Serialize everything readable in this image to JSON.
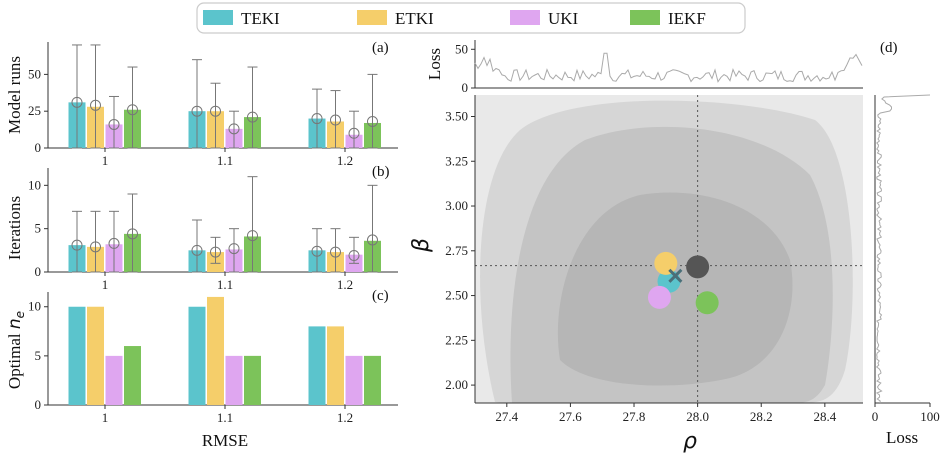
{
  "legend": [
    {
      "name": "TEKI",
      "color": "#5bc4cc"
    },
    {
      "name": "ETKI",
      "color": "#f5ce6a"
    },
    {
      "name": "UKI",
      "color": "#dfa6f0"
    },
    {
      "name": "IEKF",
      "color": "#7cc35a"
    }
  ],
  "chart_data": [
    {
      "type": "bar",
      "panel": "(a)",
      "ylabel": "Model runs",
      "xlabel": "",
      "categories": [
        "1",
        "1.1",
        "1.2"
      ],
      "ylim": [
        0,
        72
      ],
      "yticks": [
        0,
        25,
        50
      ],
      "series": [
        {
          "name": "TEKI",
          "values": [
            31,
            25,
            20
          ],
          "mean": [
            31,
            25,
            20
          ],
          "err_low": [
            0,
            0,
            0
          ],
          "err_high": [
            70,
            60,
            40
          ]
        },
        {
          "name": "ETKI",
          "values": [
            28,
            25,
            18
          ],
          "mean": [
            29,
            25,
            19
          ],
          "err_low": [
            0,
            0,
            0
          ],
          "err_high": [
            70,
            44,
            39
          ]
        },
        {
          "name": "UKI",
          "values": [
            16,
            13,
            9
          ],
          "mean": [
            16,
            13,
            10
          ],
          "err_low": [
            0,
            0,
            0
          ],
          "err_high": [
            35,
            25,
            25
          ]
        },
        {
          "name": "IEKF",
          "values": [
            26,
            21,
            17
          ],
          "mean": [
            26,
            21,
            18
          ],
          "err_low": [
            0,
            0,
            0
          ],
          "err_high": [
            55,
            55,
            50
          ]
        }
      ]
    },
    {
      "type": "bar",
      "panel": "(b)",
      "ylabel": "Iterations",
      "xlabel": "",
      "categories": [
        "1",
        "1.1",
        "1.2"
      ],
      "ylim": [
        0,
        12
      ],
      "yticks": [
        0,
        5,
        10
      ],
      "series": [
        {
          "name": "TEKI",
          "values": [
            3.1,
            2.5,
            2.5
          ],
          "mean": [
            3.1,
            2.5,
            2.4
          ],
          "err_low": [
            0,
            0,
            0
          ],
          "err_high": [
            7,
            6,
            5
          ]
        },
        {
          "name": "ETKI",
          "values": [
            2.9,
            2.3,
            2.3
          ],
          "mean": [
            2.9,
            2.3,
            2.3
          ],
          "err_low": [
            0,
            1,
            0
          ],
          "err_high": [
            7,
            4,
            5
          ]
        },
        {
          "name": "UKI",
          "values": [
            3.2,
            2.6,
            2.0
          ],
          "mean": [
            3.3,
            2.7,
            1.9
          ],
          "err_low": [
            0,
            0,
            1
          ],
          "err_high": [
            7,
            5,
            4
          ]
        },
        {
          "name": "IEKF",
          "values": [
            4.4,
            4.1,
            3.6
          ],
          "mean": [
            4.4,
            4.2,
            3.7
          ],
          "err_low": [
            0,
            0,
            0
          ],
          "err_high": [
            9,
            11,
            10
          ]
        }
      ]
    },
    {
      "type": "bar",
      "panel": "(c)",
      "ylabel": "Optimal n_e",
      "xlabel": "RMSE",
      "categories": [
        "1",
        "1.1",
        "1.2"
      ],
      "ylim": [
        0,
        11.5
      ],
      "yticks": [
        0,
        5,
        10
      ],
      "series": [
        {
          "name": "TEKI",
          "values": [
            10,
            10,
            8
          ]
        },
        {
          "name": "ETKI",
          "values": [
            10,
            11,
            8
          ]
        },
        {
          "name": "UKI",
          "values": [
            5,
            5,
            5
          ]
        },
        {
          "name": "IEKF",
          "values": [
            6,
            5,
            5
          ]
        }
      ]
    },
    {
      "type": "scatter",
      "panel": "(d)",
      "xlabel": "ρ",
      "ylabel": "β",
      "xlim": [
        27.3,
        28.52
      ],
      "ylim": [
        1.9,
        3.62
      ],
      "xticks": [
        27.4,
        27.6,
        27.8,
        28.0,
        28.2,
        28.4
      ],
      "yticks": [
        2.0,
        2.25,
        2.5,
        2.75,
        3.0,
        3.25,
        3.5
      ],
      "xtick_labels": [
        "27.4",
        "27.6",
        "27.8",
        "28.0",
        "28.2",
        "28.4"
      ],
      "ytick_labels": [
        "2.00",
        "2.25",
        "2.50",
        "2.75",
        "3.00",
        "3.25",
        "3.50"
      ],
      "true_value": {
        "x": 28.0,
        "y": 2.667
      },
      "points": [
        {
          "name": "TEKI",
          "x": 27.91,
          "y": 2.58
        },
        {
          "name": "ETKI",
          "x": 27.9,
          "y": 2.68
        },
        {
          "name": "UKI",
          "x": 27.88,
          "y": 2.49
        },
        {
          "name": "IEKF",
          "x": 28.03,
          "y": 2.46
        },
        {
          "name": "True",
          "x": 28.0,
          "y": 2.66,
          "color": "#555555"
        }
      ],
      "marker": {
        "label": "x",
        "x": 27.93,
        "y": 2.61
      },
      "top_marginal": {
        "ylabel": "Loss",
        "yticks": [
          0,
          50
        ],
        "ylim": [
          0,
          62
        ]
      },
      "right_marginal": {
        "xlabel": "Loss",
        "xticks": [
          0,
          100
        ],
        "xlim": [
          0,
          100
        ]
      }
    }
  ]
}
